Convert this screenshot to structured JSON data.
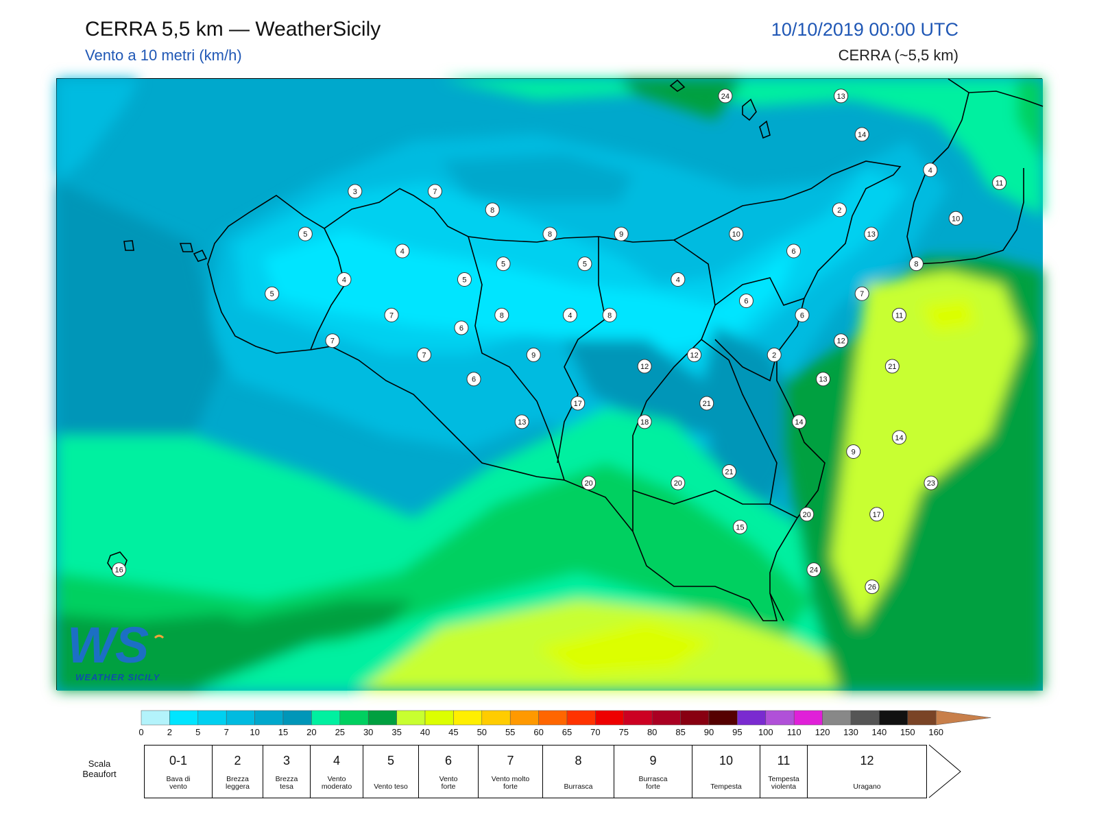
{
  "header": {
    "title": "CERRA 5,5 km — WeatherSicily",
    "subtitle": "Vento a 10 metri (km/h)",
    "datetime": "10/10/2019 00:00 UTC",
    "model": "CERRA (~5,5 km)"
  },
  "logo": {
    "name": "WeatherSicily",
    "text": "WEATHER SICILY",
    "letters": "WS"
  },
  "colorbar": {
    "ticks": [
      "0",
      "2",
      "5",
      "7",
      "10",
      "15",
      "20",
      "25",
      "30",
      "35",
      "40",
      "45",
      "50",
      "55",
      "60",
      "65",
      "70",
      "75",
      "80",
      "85",
      "90",
      "95",
      "100",
      "110",
      "120",
      "130",
      "140",
      "150",
      "160"
    ],
    "colors": [
      "#b3f3fb",
      "#00e5ff",
      "#00d0f0",
      "#00bbe0",
      "#00a8cc",
      "#0096b8",
      "#00f0a0",
      "#00d060",
      "#00a040",
      "#c8ff30",
      "#dcff00",
      "#ffef00",
      "#ffcc00",
      "#ff9900",
      "#ff6600",
      "#ff3300",
      "#ee0000",
      "#cc0022",
      "#aa0022",
      "#880011",
      "#550000",
      "#7a2bd0",
      "#b050d8",
      "#e020d8",
      "#888888",
      "#555555",
      "#111111",
      "#7a4426",
      "#c87f4a"
    ],
    "arrow_color": "#c87f4a"
  },
  "beaufort": {
    "label": "Scala\nBeaufort",
    "levels": [
      {
        "num": "0-1",
        "desc": "Bava di\nvento"
      },
      {
        "num": "2",
        "desc": "Brezza\nleggera"
      },
      {
        "num": "3",
        "desc": "Brezza\ntesa"
      },
      {
        "num": "4",
        "desc": "Vento\nmoderato"
      },
      {
        "num": "5",
        "desc": "Vento teso"
      },
      {
        "num": "6",
        "desc": "Vento\nforte"
      },
      {
        "num": "7",
        "desc": "Vento molto\nforte"
      },
      {
        "num": "8",
        "desc": "Burrasca"
      },
      {
        "num": "9",
        "desc": "Burrasca\nforte"
      },
      {
        "num": "10",
        "desc": "Tempesta"
      },
      {
        "num": "11",
        "desc": "Tempesta\nviolenta"
      },
      {
        "num": "12",
        "desc": "Uragano"
      }
    ]
  },
  "stations": [
    {
      "v": "24",
      "lon": 12.91,
      "lat": 38.78
    },
    {
      "v": "13",
      "lon": 14.4,
      "lat": 38.78
    },
    {
      "v": "14",
      "lon": 14.67,
      "lat": 38.51
    },
    {
      "v": "4",
      "lon": 15.55,
      "lat": 38.26
    },
    {
      "v": "11",
      "lon": 16.44,
      "lat": 38.17
    },
    {
      "v": "3",
      "lon": 8.14,
      "lat": 38.11
    },
    {
      "v": "7",
      "lon": 9.17,
      "lat": 38.11
    },
    {
      "v": "8",
      "lon": 9.91,
      "lat": 37.98
    },
    {
      "v": "2",
      "lon": 14.38,
      "lat": 37.98
    },
    {
      "v": "10",
      "lon": 15.88,
      "lat": 37.92
    },
    {
      "v": "5",
      "lon": 7.5,
      "lat": 37.81
    },
    {
      "v": "8",
      "lon": 10.65,
      "lat": 37.81
    },
    {
      "v": "9",
      "lon": 11.57,
      "lat": 37.81
    },
    {
      "v": "10",
      "lon": 13.05,
      "lat": 37.81
    },
    {
      "v": "13",
      "lon": 14.79,
      "lat": 37.81
    },
    {
      "v": "4",
      "lon": 8.75,
      "lat": 37.69
    },
    {
      "v": "6",
      "lon": 13.79,
      "lat": 37.69
    },
    {
      "v": "5",
      "lon": 10.05,
      "lat": 37.6
    },
    {
      "v": "5",
      "lon": 11.1,
      "lat": 37.6
    },
    {
      "v": "8",
      "lon": 15.37,
      "lat": 37.6
    },
    {
      "v": "4",
      "lon": 8.0,
      "lat": 37.49
    },
    {
      "v": "5",
      "lon": 9.55,
      "lat": 37.49
    },
    {
      "v": "4",
      "lon": 12.3,
      "lat": 37.49
    },
    {
      "v": "5",
      "lon": 7.07,
      "lat": 37.39
    },
    {
      "v": "7",
      "lon": 14.67,
      "lat": 37.39
    },
    {
      "v": "6",
      "lon": 13.18,
      "lat": 37.34
    },
    {
      "v": "7",
      "lon": 8.61,
      "lat": 37.24
    },
    {
      "v": "8",
      "lon": 10.03,
      "lat": 37.24
    },
    {
      "v": "4",
      "lon": 10.91,
      "lat": 37.24
    },
    {
      "v": "8",
      "lon": 11.42,
      "lat": 37.24
    },
    {
      "v": "6",
      "lon": 13.9,
      "lat": 37.24
    },
    {
      "v": "11",
      "lon": 15.15,
      "lat": 37.24
    },
    {
      "v": "6",
      "lon": 9.51,
      "lat": 37.15
    },
    {
      "v": "7",
      "lon": 7.85,
      "lat": 37.06
    },
    {
      "v": "12",
      "lon": 14.4,
      "lat": 37.06
    },
    {
      "v": "7",
      "lon": 9.03,
      "lat": 36.96
    },
    {
      "v": "9",
      "lon": 10.44,
      "lat": 36.96
    },
    {
      "v": "12",
      "lon": 12.51,
      "lat": 36.96
    },
    {
      "v": "2",
      "lon": 13.54,
      "lat": 36.96
    },
    {
      "v": "12",
      "lon": 11.87,
      "lat": 36.88
    },
    {
      "v": "21",
      "lon": 15.06,
      "lat": 36.88
    },
    {
      "v": "6",
      "lon": 9.67,
      "lat": 36.79
    },
    {
      "v": "13",
      "lon": 14.17,
      "lat": 36.79
    },
    {
      "v": "17",
      "lon": 11.01,
      "lat": 36.62
    },
    {
      "v": "21",
      "lon": 12.67,
      "lat": 36.62
    },
    {
      "v": "13",
      "lon": 10.29,
      "lat": 36.49
    },
    {
      "v": "18",
      "lon": 11.87,
      "lat": 36.49
    },
    {
      "v": "14",
      "lon": 13.86,
      "lat": 36.49
    },
    {
      "v": "14",
      "lon": 15.15,
      "lat": 36.38
    },
    {
      "v": "9",
      "lon": 14.56,
      "lat": 36.28
    },
    {
      "v": "21",
      "lon": 12.96,
      "lat": 36.14
    },
    {
      "v": "20",
      "lon": 11.15,
      "lat": 36.06
    },
    {
      "v": "20",
      "lon": 12.3,
      "lat": 36.06
    },
    {
      "v": "23",
      "lon": 15.56,
      "lat": 36.06
    },
    {
      "v": "20",
      "lon": 13.96,
      "lat": 35.84
    },
    {
      "v": "17",
      "lon": 14.86,
      "lat": 35.84
    },
    {
      "v": "15",
      "lon": 13.1,
      "lat": 35.75
    },
    {
      "v": "16",
      "lon": 5.1,
      "lat": 35.45
    },
    {
      "v": "24",
      "lon": 14.05,
      "lat": 35.45
    },
    {
      "v": "26",
      "lon": 14.8,
      "lat": 35.33
    }
  ]
}
